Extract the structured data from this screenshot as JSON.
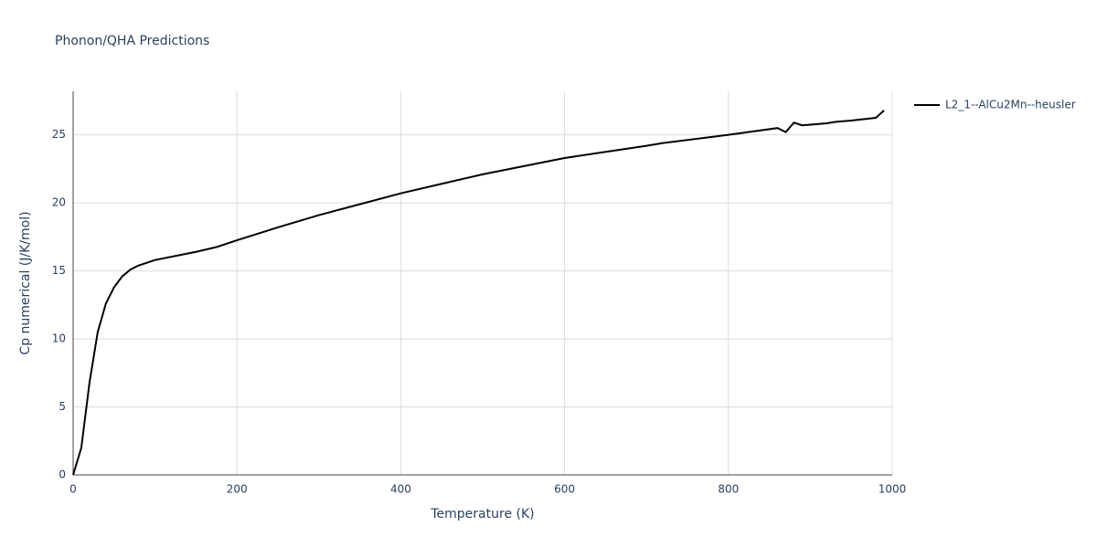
{
  "chart_data": {
    "type": "line",
    "title": "Phonon/QHA Predictions",
    "x_label": "Temperature (K)",
    "y_label": "Cp numerical (J/K/mol)",
    "x": [
      0,
      10,
      20,
      30,
      40,
      50,
      60,
      70,
      80,
      100,
      150,
      175,
      200,
      250,
      300,
      350,
      400,
      450,
      500,
      600,
      700,
      720,
      800,
      860,
      870,
      880,
      890,
      910,
      920,
      930,
      950,
      980,
      990
    ],
    "series": [
      {
        "name": "L2_1--AlCu2Mn--heusler",
        "color": "#000000",
        "values": [
          0,
          2.0,
          6.8,
          10.5,
          12.6,
          13.8,
          14.6,
          15.1,
          15.4,
          15.8,
          16.4,
          16.75,
          17.25,
          18.2,
          19.1,
          19.9,
          20.7,
          21.4,
          22.1,
          23.3,
          24.2,
          24.4,
          25.0,
          25.5,
          25.2,
          25.9,
          25.7,
          25.8,
          25.85,
          25.95,
          26.05,
          26.25,
          26.8
        ]
      }
    ],
    "xlim": [
      0,
      1000
    ],
    "xticks": [
      0,
      200,
      400,
      600,
      800,
      1000
    ],
    "ylim": [
      0,
      28.2
    ],
    "yticks": [
      0,
      5,
      10,
      15,
      20,
      25
    ],
    "grid": true
  }
}
